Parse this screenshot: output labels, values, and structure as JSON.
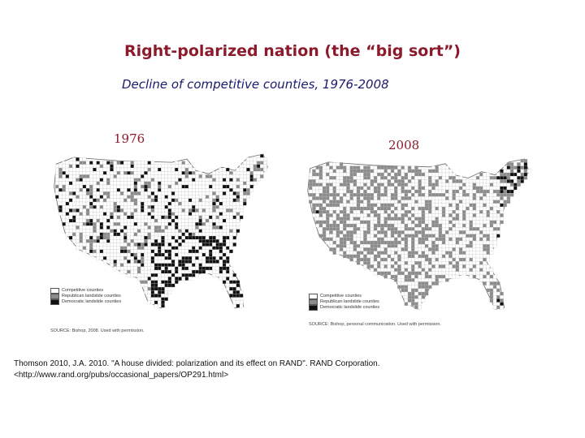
{
  "slide": {
    "title": "Right-polarized nation (the “big sort”)",
    "subtitle": "Decline of competitive counties, 1976-2008",
    "citation_line1": "Thomson 2010, J.A. 2010. \"A house divided: polarization and its effect on RAND\". RAND Corporation.",
    "citation_line2": "<http://www.rand.org/pubs/occasional_papers/OP291.html>"
  },
  "maps": [
    {
      "year": "1976",
      "legend": [
        "Competitive counties",
        "Republican landslide counties",
        "Democratic landslide counties"
      ],
      "source": "SOURCE: Bishop, 2008. Used with permission."
    },
    {
      "year": "2008",
      "legend": [
        "Competitive counties",
        "Republican landslide counties",
        "Democratic landslide counties"
      ],
      "source": "SOURCE: Bishop, personal communication. Used with permission."
    }
  ],
  "colors": {
    "title": "#8b1a2b",
    "subtitle": "#1a1a6e",
    "competitive": "#ffffff",
    "republican": "#8c8c8c",
    "democratic": "#111111"
  }
}
